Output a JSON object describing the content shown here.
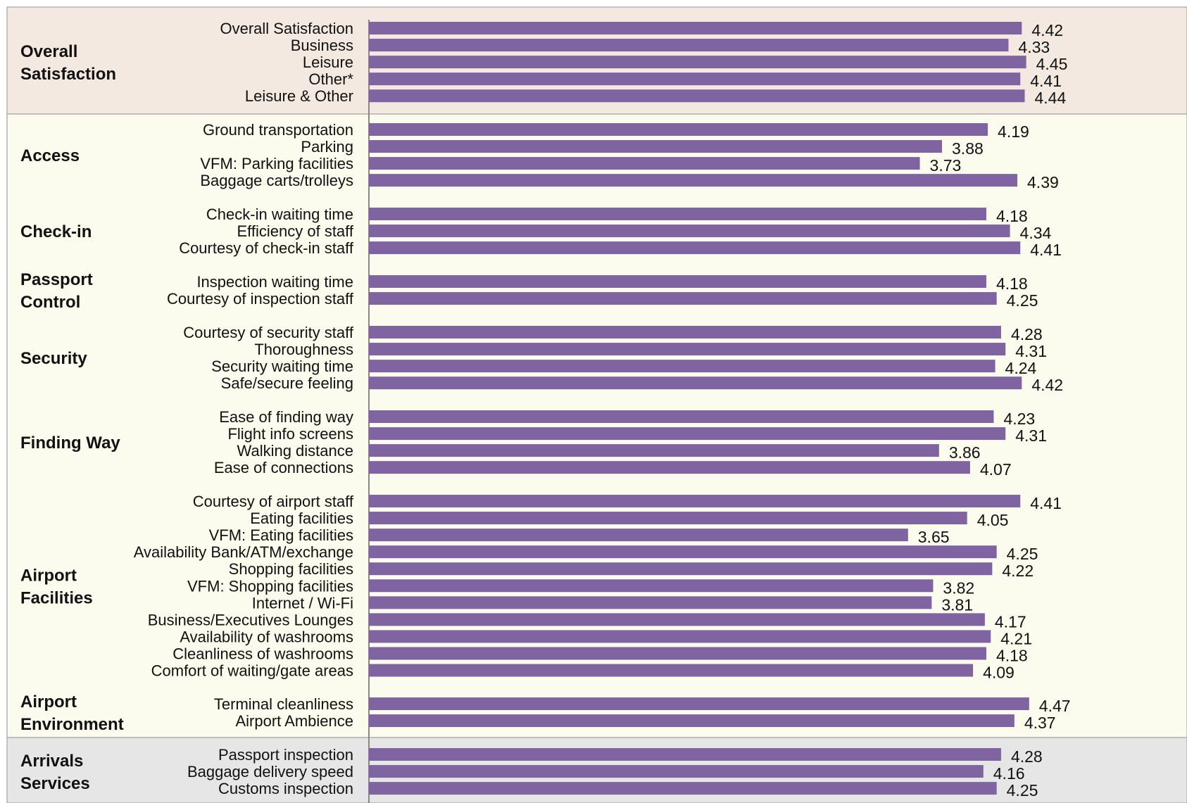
{
  "chart_data": {
    "type": "bar",
    "orientation": "horizontal",
    "groups": [
      {
        "label": "Overall Satisfaction",
        "background": "#f3e9e1",
        "items": [
          {
            "label": "Overall Satisfaction",
            "value": 4.42
          },
          {
            "label": "Business",
            "value": 4.33
          },
          {
            "label": "Leisure",
            "value": 4.45
          },
          {
            "label": "Other*",
            "value": 4.41
          },
          {
            "label": "Leisure & Other",
            "value": 4.44
          }
        ]
      },
      {
        "label": "Access",
        "background": "#fbfbee",
        "items": [
          {
            "label": "Ground transportation",
            "value": 4.19
          },
          {
            "label": "Parking",
            "value": 3.88
          },
          {
            "label": "VFM: Parking facilities",
            "value": 3.73
          },
          {
            "label": "Baggage carts/trolleys",
            "value": 4.39
          }
        ]
      },
      {
        "label": "Check-in",
        "background": "#fbfbee",
        "items": [
          {
            "label": "Check-in waiting time",
            "value": 4.18
          },
          {
            "label": "Efficiency of staff",
            "value": 4.34
          },
          {
            "label": "Courtesy of check-in staff",
            "value": 4.41
          }
        ]
      },
      {
        "label": "Passport Control",
        "background": "#fbfbee",
        "items": [
          {
            "label": "Inspection waiting time",
            "value": 4.18
          },
          {
            "label": "Courtesy of inspection staff",
            "value": 4.25
          }
        ]
      },
      {
        "label": "Security",
        "background": "#fbfbee",
        "items": [
          {
            "label": "Courtesy of security staff",
            "value": 4.28
          },
          {
            "label": "Thoroughness",
            "value": 4.31
          },
          {
            "label": "Security waiting time",
            "value": 4.24
          },
          {
            "label": "Safe/secure feeling",
            "value": 4.42
          }
        ]
      },
      {
        "label": "Finding Way",
        "background": "#fbfbee",
        "items": [
          {
            "label": "Ease of finding way",
            "value": 4.23
          },
          {
            "label": "Flight info screens",
            "value": 4.31
          },
          {
            "label": "Walking distance",
            "value": 3.86
          },
          {
            "label": "Ease of connections",
            "value": 4.07
          }
        ]
      },
      {
        "label": "Airport Facilities",
        "background": "#fbfbee",
        "items": [
          {
            "label": "Courtesy of airport staff",
            "value": 4.41
          },
          {
            "label": "Eating facilities",
            "value": 4.05
          },
          {
            "label": "VFM: Eating facilities",
            "value": 3.65
          },
          {
            "label": "Availability Bank/ATM/exchange",
            "value": 4.25
          },
          {
            "label": "Shopping facilities",
            "value": 4.22
          },
          {
            "label": "VFM: Shopping facilities",
            "value": 3.82
          },
          {
            "label": "Internet / Wi-Fi",
            "value": 3.81
          },
          {
            "label": "Business/Executives Lounges",
            "value": 4.17
          },
          {
            "label": "Availability of washrooms",
            "value": 4.21
          },
          {
            "label": "Cleanliness of washrooms",
            "value": 4.18
          },
          {
            "label": "Comfort of waiting/gate areas",
            "value": 4.09
          }
        ]
      },
      {
        "label": "Airport Environment",
        "background": "#fbfbee",
        "items": [
          {
            "label": "Terminal cleanliness",
            "value": 4.47
          },
          {
            "label": "Airport Ambience",
            "value": 4.37
          }
        ]
      },
      {
        "label": "Arrivals Services",
        "background": "#e6e6e6",
        "items": [
          {
            "label": "Passport inspection",
            "value": 4.28
          },
          {
            "label": "Baggage delivery speed",
            "value": 4.16
          },
          {
            "label": "Customs inspection",
            "value": 4.25
          }
        ]
      }
    ],
    "xlim": [
      0,
      5
    ],
    "bar_color": "#8064a2",
    "grid": false,
    "legend": "none"
  }
}
